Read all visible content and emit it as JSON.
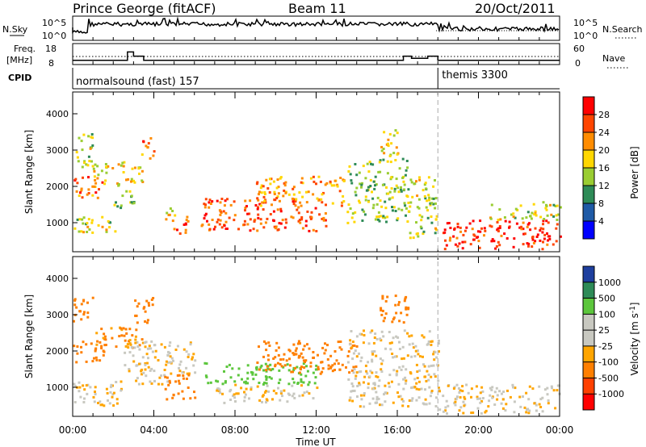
{
  "header": {
    "station": "Prince George (fitACF)",
    "beam": "Beam 11",
    "date": "20/Oct/2011"
  },
  "strip": {
    "nsky_label": "N.Sky",
    "nsky_ticks": [
      "10^5",
      "10^0"
    ],
    "nsearch_label": "N.Search",
    "nsearch_ticks": [
      "10^5",
      "10^0"
    ],
    "freq_label": "Freq.",
    "freq_unit": "[MHz]",
    "freq_ticks": [
      "18",
      "8"
    ],
    "nave_label": "Nave",
    "nave_ticks": [
      "60",
      "0"
    ],
    "cpid_label": "CPID",
    "modes": [
      {
        "name": "normalsound (fast) 157",
        "start_hour": 0,
        "end_hour": 18
      },
      {
        "name": "themis 3300",
        "start_hour": 18,
        "end_hour": 24
      }
    ]
  },
  "axes": {
    "ylabel": "Slant Range [km]",
    "xlabel": "Time UT",
    "yticks": [
      "4000",
      "3000",
      "2000",
      "1000"
    ],
    "xticks": [
      "00:00",
      "04:00",
      "08:00",
      "12:00",
      "16:00",
      "20:00",
      "00:00"
    ]
  },
  "power_colorbar": {
    "label": "Power [dB]",
    "ticks": [
      "28",
      "24",
      "20",
      "16",
      "12",
      "8",
      "4"
    ],
    "colors": [
      "#ff0000",
      "#ff4500",
      "#ff8c00",
      "#ffd700",
      "#9acd32",
      "#2e8b57",
      "#1f5aa6",
      "#0000ff"
    ]
  },
  "velocity_colorbar": {
    "label": "Velocity [m s",
    "label_sup": "-1",
    "label_end": "]",
    "ticks": [
      "1000",
      "500",
      "100",
      "25",
      "-25",
      "-100",
      "-500",
      "-1000"
    ],
    "colors": [
      "#1e3f9e",
      "#2e8b57",
      "#5cc63c",
      "#c8c8c0",
      "#c8c8c0",
      "#ffa500",
      "#ff7f00",
      "#ff4000",
      "#ff0000"
    ]
  },
  "chart_data": {
    "type": "heatmap",
    "title": "Prince George (fitACF)  Beam 11  20/Oct/2011",
    "x_unit": "hour UT",
    "y_unit": "km",
    "xlim": [
      0,
      24
    ],
    "ylim": [
      200,
      4600
    ],
    "frequency_mhz": [
      {
        "start": 0,
        "end": 2.7,
        "value": 10
      },
      {
        "start": 2.7,
        "end": 3.0,
        "value": 14
      },
      {
        "start": 3.0,
        "end": 3.5,
        "value": 12
      },
      {
        "start": 3.5,
        "end": 5.5,
        "value": 10
      },
      {
        "start": 5.5,
        "end": 16.3,
        "value": 10
      },
      {
        "start": 16.3,
        "end": 16.7,
        "value": 12
      },
      {
        "start": 16.7,
        "end": 17.5,
        "value": 11
      },
      {
        "start": 17.5,
        "end": 18.0,
        "value": 12
      },
      {
        "start": 18.0,
        "end": 24,
        "value": 10
      }
    ],
    "power_patches": [
      {
        "t0": 0.0,
        "t1": 2.2,
        "r0": 700,
        "r1": 1200,
        "db": 16
      },
      {
        "t0": 0.0,
        "t1": 1.5,
        "r0": 1700,
        "r1": 2300,
        "db": 24
      },
      {
        "t0": 0.0,
        "t1": 1.0,
        "r0": 2500,
        "r1": 3500,
        "db": 16
      },
      {
        "t0": 1.0,
        "t1": 3.5,
        "r0": 2100,
        "r1": 2700,
        "db": 18
      },
      {
        "t0": 2.0,
        "t1": 3.0,
        "r0": 1400,
        "r1": 2100,
        "db": 14
      },
      {
        "t0": 3.3,
        "t1": 4.0,
        "r0": 2800,
        "r1": 3400,
        "db": 24
      },
      {
        "t0": 4.5,
        "t1": 5.0,
        "r0": 800,
        "r1": 1500,
        "db": 18
      },
      {
        "t0": 5.0,
        "t1": 5.8,
        "r0": 700,
        "r1": 1200,
        "db": 26
      },
      {
        "t0": 6.3,
        "t1": 12.5,
        "r0": 800,
        "r1": 1700,
        "db": 26
      },
      {
        "t0": 9.0,
        "t1": 13.5,
        "r0": 1500,
        "r1": 2300,
        "db": 22
      },
      {
        "t0": 13.5,
        "t1": 16.5,
        "r0": 1000,
        "r1": 2800,
        "db": 14
      },
      {
        "t0": 15.0,
        "t1": 16.0,
        "r0": 2800,
        "r1": 3600,
        "db": 18
      },
      {
        "t0": 16.5,
        "t1": 18.0,
        "r0": 600,
        "r1": 2300,
        "db": 16
      },
      {
        "t0": 18.0,
        "t1": 24.0,
        "r0": 300,
        "r1": 1100,
        "db": 28
      },
      {
        "t0": 20.5,
        "t1": 24.0,
        "r0": 1100,
        "r1": 1600,
        "db": 16
      }
    ],
    "velocity_patches": [
      {
        "t0": 0.0,
        "t1": 2.5,
        "r0": 500,
        "r1": 1200,
        "v": 0
      },
      {
        "t0": 0.0,
        "t1": 1.5,
        "r0": 1700,
        "r1": 2300,
        "v": -300
      },
      {
        "t0": 0.0,
        "t1": 1.0,
        "r0": 2800,
        "r1": 3500,
        "v": -200
      },
      {
        "t0": 1.0,
        "t1": 3.5,
        "r0": 2100,
        "r1": 2700,
        "v": -150
      },
      {
        "t0": 3.0,
        "t1": 4.0,
        "r0": 2800,
        "r1": 3500,
        "v": -200
      },
      {
        "t0": 2.5,
        "t1": 6.0,
        "r0": 1100,
        "r1": 2300,
        "v": 0
      },
      {
        "t0": 4.5,
        "t1": 6.0,
        "r0": 700,
        "r1": 1400,
        "v": -300
      },
      {
        "t0": 6.3,
        "t1": 12.0,
        "r0": 1100,
        "r1": 1700,
        "v": 200
      },
      {
        "t0": 7.0,
        "t1": 12.0,
        "r0": 600,
        "r1": 1100,
        "v": 0
      },
      {
        "t0": 9.0,
        "t1": 14.0,
        "r0": 1400,
        "r1": 2300,
        "v": -200
      },
      {
        "t0": 13.5,
        "t1": 18.0,
        "r0": 500,
        "r1": 2600,
        "v": 0
      },
      {
        "t0": 15.0,
        "t1": 16.5,
        "r0": 2800,
        "r1": 3600,
        "v": -250
      },
      {
        "t0": 18.0,
        "t1": 24.0,
        "r0": 300,
        "r1": 1100,
        "v": 0
      }
    ]
  }
}
